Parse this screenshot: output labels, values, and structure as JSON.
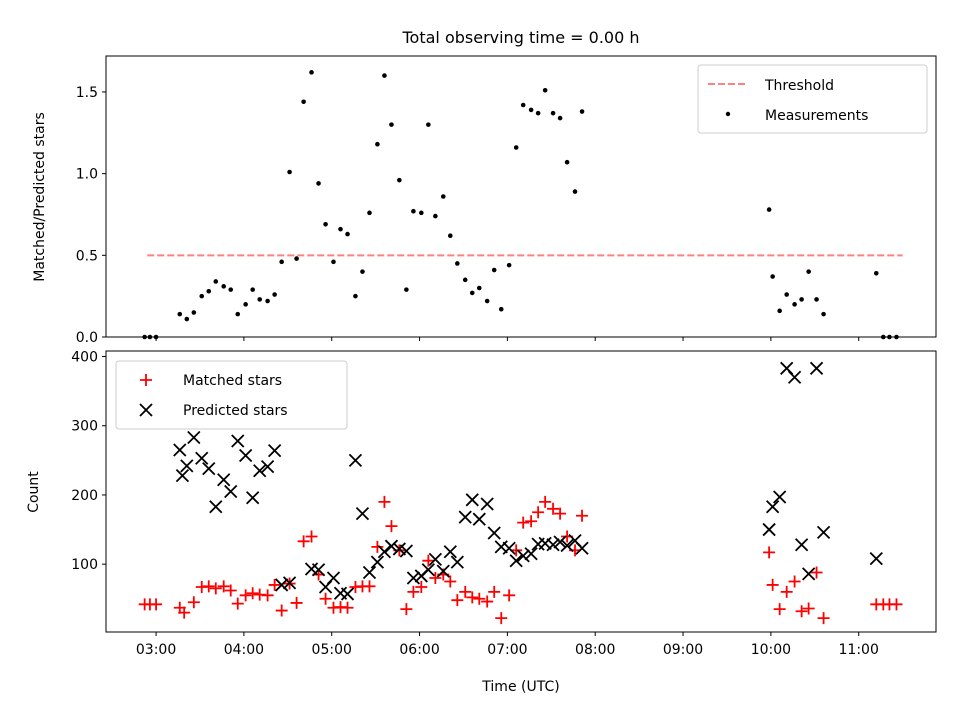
{
  "chart_data": [
    {
      "type": "scatter",
      "title": "Total observing time = 0.00 h",
      "xlabel": "",
      "ylabel": "Matched/Predicted stars",
      "x_unit": "hours UTC",
      "xlim": [
        2.43,
        11.88
      ],
      "ylim": [
        0,
        1.72
      ],
      "yticks": [
        0.0,
        0.5,
        1.0,
        1.5
      ],
      "ytick_labels": [
        "0.0",
        "0.5",
        "1.0",
        "1.5"
      ],
      "grid": false,
      "legend": {
        "position": "top-right",
        "entries": [
          "Threshold",
          "Measurements"
        ]
      },
      "threshold": {
        "name": "Threshold",
        "x": [
          2.9,
          11.5
        ],
        "y": 0.5,
        "color": "#ff8080",
        "style": "dashed"
      },
      "series": [
        {
          "name": "Measurements",
          "color": "#000000",
          "marker": "dot",
          "x": [
            2.87,
            2.93,
            3.0,
            3.27,
            3.35,
            3.43,
            3.52,
            3.6,
            3.68,
            3.77,
            3.85,
            3.93,
            4.02,
            4.1,
            4.18,
            4.27,
            4.35,
            4.43,
            4.52,
            4.6,
            4.68,
            4.77,
            4.85,
            4.93,
            5.02,
            5.1,
            5.18,
            5.27,
            5.35,
            5.43,
            5.52,
            5.6,
            5.68,
            5.77,
            5.85,
            5.93,
            6.02,
            6.1,
            6.18,
            6.27,
            6.35,
            6.43,
            6.52,
            6.6,
            6.68,
            6.77,
            6.85,
            6.93,
            7.02,
            7.1,
            7.18,
            7.27,
            7.35,
            7.43,
            7.52,
            7.6,
            7.68,
            7.77,
            7.85,
            9.98,
            10.02,
            10.1,
            10.18,
            10.27,
            10.35,
            10.43,
            10.52,
            10.6,
            11.2,
            11.28,
            11.35,
            11.43
          ],
          "y": [
            0.0,
            0.0,
            0.0,
            0.14,
            0.11,
            0.15,
            0.25,
            0.28,
            0.34,
            0.31,
            0.29,
            0.14,
            0.2,
            0.29,
            0.23,
            0.22,
            0.26,
            0.46,
            1.01,
            0.48,
            1.44,
            1.62,
            0.94,
            0.69,
            0.46,
            0.66,
            0.63,
            0.25,
            0.4,
            0.76,
            1.18,
            1.6,
            1.3,
            0.96,
            0.29,
            0.77,
            0.76,
            1.3,
            0.74,
            0.86,
            0.62,
            0.45,
            0.35,
            0.27,
            0.3,
            0.22,
            0.41,
            0.17,
            0.44,
            1.16,
            1.42,
            1.39,
            1.37,
            1.51,
            1.37,
            1.34,
            1.07,
            0.89,
            1.38,
            0.78,
            0.37,
            0.16,
            0.26,
            0.2,
            0.23,
            0.4,
            0.23,
            0.14,
            0.39,
            0.0,
            0.0,
            0.0
          ]
        }
      ]
    },
    {
      "type": "scatter",
      "xlabel": "Time (UTC)",
      "ylabel": "Count",
      "x_unit": "hours UTC",
      "xlim": [
        2.43,
        11.88
      ],
      "ylim": [
        2,
        408
      ],
      "xticks": [
        3,
        4,
        5,
        6,
        7,
        8,
        9,
        10,
        11
      ],
      "xtick_labels": [
        "03:00",
        "04:00",
        "05:00",
        "06:00",
        "07:00",
        "08:00",
        "09:00",
        "10:00",
        "11:00"
      ],
      "yticks": [
        100,
        200,
        300,
        400
      ],
      "ytick_labels": [
        "100",
        "200",
        "300",
        "400"
      ],
      "grid": false,
      "legend": {
        "position": "top-left",
        "entries": [
          "Matched stars",
          "Predicted stars"
        ]
      },
      "series": [
        {
          "name": "Matched stars",
          "color": "#ff0000",
          "marker": "plus",
          "x": [
            2.87,
            2.93,
            3.0,
            3.27,
            3.32,
            3.43,
            3.52,
            3.6,
            3.68,
            3.77,
            3.85,
            3.93,
            4.02,
            4.1,
            4.18,
            4.27,
            4.35,
            4.43,
            4.52,
            4.6,
            4.68,
            4.77,
            4.85,
            4.93,
            5.02,
            5.1,
            5.18,
            5.27,
            5.35,
            5.43,
            5.52,
            5.6,
            5.68,
            5.77,
            5.85,
            5.93,
            6.02,
            6.1,
            6.18,
            6.27,
            6.35,
            6.43,
            6.52,
            6.6,
            6.68,
            6.77,
            6.85,
            6.93,
            7.02,
            7.1,
            7.18,
            7.27,
            7.35,
            7.43,
            7.52,
            7.6,
            7.68,
            7.77,
            7.85,
            9.98,
            10.02,
            10.1,
            10.18,
            10.27,
            10.35,
            10.43,
            10.52,
            10.6,
            11.2,
            11.28,
            11.35,
            11.43
          ],
          "y": [
            42,
            42,
            42,
            37,
            30,
            45,
            67,
            68,
            65,
            68,
            62,
            43,
            55,
            58,
            56,
            55,
            70,
            33,
            72,
            44,
            133,
            140,
            85,
            50,
            37,
            38,
            37,
            67,
            68,
            68,
            125,
            190,
            155,
            120,
            35,
            60,
            67,
            105,
            80,
            85,
            75,
            48,
            60,
            52,
            50,
            46,
            60,
            22,
            55,
            120,
            160,
            162,
            175,
            190,
            180,
            173,
            140,
            120,
            170,
            117,
            70,
            35,
            60,
            75,
            32,
            36,
            88,
            22,
            42,
            42,
            42,
            42
          ]
        },
        {
          "name": "Predicted stars",
          "color": "#000000",
          "marker": "x",
          "x": [
            3.27,
            3.3,
            3.35,
            3.43,
            3.52,
            3.6,
            3.68,
            3.77,
            3.85,
            3.93,
            4.02,
            4.1,
            4.18,
            4.27,
            4.35,
            4.43,
            4.52,
            4.77,
            4.85,
            4.93,
            5.02,
            5.1,
            5.18,
            5.27,
            5.35,
            5.43,
            5.52,
            5.6,
            5.68,
            5.77,
            5.85,
            5.93,
            6.02,
            6.1,
            6.18,
            6.27,
            6.35,
            6.43,
            6.52,
            6.6,
            6.68,
            6.77,
            6.85,
            6.93,
            7.02,
            7.1,
            7.18,
            7.27,
            7.35,
            7.43,
            7.52,
            7.6,
            7.68,
            7.77,
            7.85,
            9.98,
            10.02,
            10.1,
            10.18,
            10.27,
            10.35,
            10.43,
            10.52,
            10.6,
            11.2
          ],
          "y": [
            265,
            228,
            242,
            283,
            253,
            238,
            183,
            222,
            205,
            278,
            257,
            196,
            235,
            241,
            264,
            70,
            73,
            93,
            92,
            67,
            80,
            58,
            57,
            250,
            173,
            88,
            103,
            118,
            126,
            122,
            119,
            80,
            83,
            92,
            107,
            90,
            118,
            103,
            168,
            193,
            165,
            187,
            145,
            125,
            123,
            105,
            112,
            115,
            129,
            130,
            128,
            132,
            127,
            134,
            123,
            150,
            183,
            197,
            383,
            370,
            128,
            86,
            383,
            146,
            108
          ]
        }
      ]
    }
  ]
}
